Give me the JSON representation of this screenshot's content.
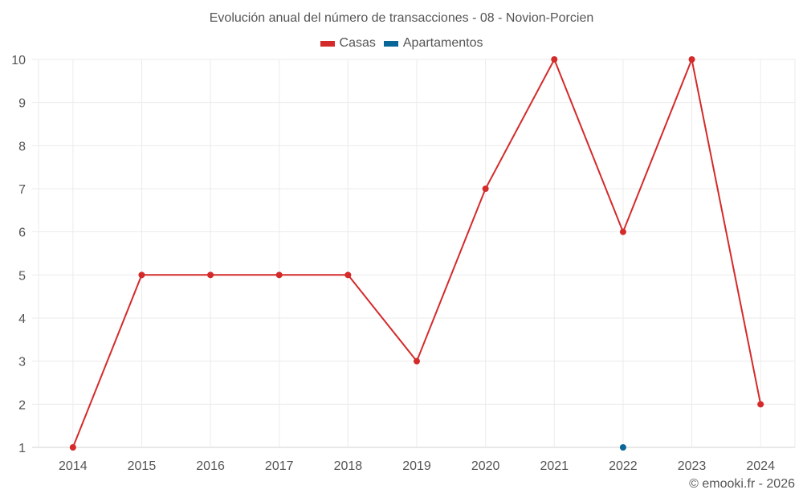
{
  "title": "Evolución anual del número de transacciones - 08 - Novion-Porcien",
  "legend": [
    {
      "label": "Casas",
      "color": "#d42a2a"
    },
    {
      "label": "Apartamentos",
      "color": "#0a6699"
    }
  ],
  "credit": "© emooki.fr - 2026",
  "chart_data": {
    "type": "line",
    "title": "Evolución anual del número de transacciones - 08 - Novion-Porcien",
    "xlabel": "",
    "ylabel": "",
    "categories": [
      "2014",
      "2015",
      "2016",
      "2017",
      "2018",
      "2019",
      "2020",
      "2021",
      "2022",
      "2023",
      "2024"
    ],
    "series": [
      {
        "name": "Casas",
        "color": "#d42a2a",
        "values": [
          1,
          5,
          5,
          5,
          5,
          3,
          7,
          10,
          6,
          10,
          2
        ]
      },
      {
        "name": "Apartamentos",
        "color": "#0a6699",
        "values": [
          null,
          null,
          null,
          null,
          null,
          null,
          null,
          null,
          1,
          null,
          null
        ]
      }
    ],
    "ylim": [
      1,
      10
    ],
    "yticks": [
      1,
      2,
      3,
      4,
      5,
      6,
      7,
      8,
      9,
      10
    ],
    "grid": true,
    "legend_position": "top"
  }
}
